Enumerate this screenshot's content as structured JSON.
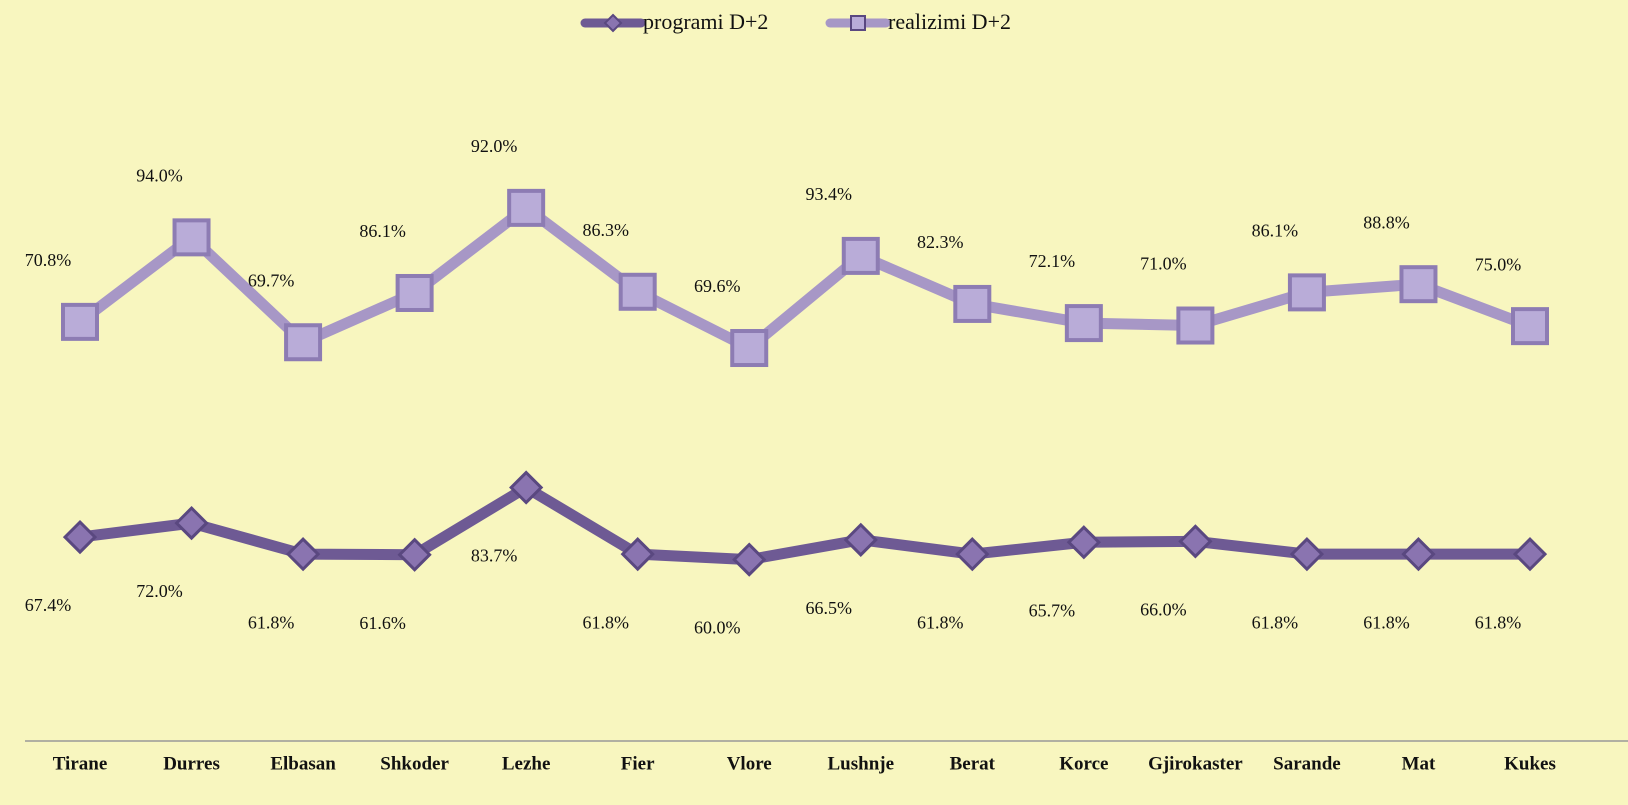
{
  "chart_data": {
    "type": "line",
    "stacked": true,
    "categories": [
      "Tirane",
      "Durres",
      "Elbasan",
      "Shkoder",
      "Lezhe",
      "Fier",
      "Vlore",
      "Lushnje",
      "Berat",
      "Korce",
      "Gjirokaster",
      "Sarande",
      "Mat",
      "Kukes"
    ],
    "series": [
      {
        "name": "programi  D+2",
        "color": "#6e5a94",
        "marker": "diamond",
        "values": [
          67.4,
          72.0,
          61.8,
          61.6,
          83.7,
          61.8,
          60.0,
          66.5,
          61.8,
          65.7,
          66.0,
          61.8,
          61.8,
          61.8
        ],
        "value_labels": [
          "67.4%",
          "72.0%",
          "61.8%",
          "61.6%",
          "83.7%",
          "61.8%",
          "60.0%",
          "66.5%",
          "61.8%",
          "65.7%",
          "66.0%",
          "61.8%",
          "61.8%",
          "61.8%"
        ]
      },
      {
        "name": "realizimi D+2",
        "color": "#a797c6",
        "marker": "square",
        "values": [
          70.8,
          94.0,
          69.7,
          86.1,
          92.0,
          86.3,
          69.6,
          93.4,
          82.3,
          72.1,
          71.0,
          86.1,
          88.8,
          75.0
        ],
        "value_labels": [
          "70.8%",
          "94.0%",
          "69.7%",
          "86.1%",
          "92.0%",
          "86.3%",
          "69.6%",
          "93.4%",
          "82.3%",
          "72.1%",
          "71.0%",
          "86.1%",
          "88.8%",
          "75.0%"
        ]
      }
    ],
    "ylim": [
      0,
      200
    ],
    "legend": "top"
  }
}
